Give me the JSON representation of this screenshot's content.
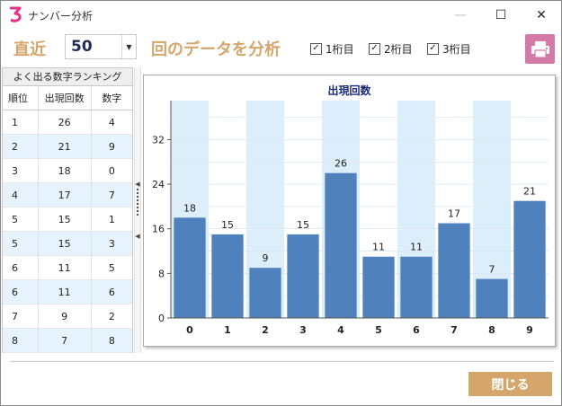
{
  "window": {
    "title": "ナンバー分析",
    "minimize_glyph": "—",
    "maximize_glyph": "☐",
    "close_glyph": "✕"
  },
  "toolbar": {
    "recent_label": "直近",
    "count_value": "50",
    "combo_arrow": "▼",
    "analyze_label": "回のデータを分析",
    "checkboxes": [
      {
        "label": "1桁目",
        "checked": true
      },
      {
        "label": "2桁目",
        "checked": true
      },
      {
        "label": "3桁目",
        "checked": true
      }
    ],
    "check_glyph": "✓",
    "print_icon": "printer-icon",
    "print_color": "#d37aa9"
  },
  "ranking": {
    "title": "よく出る数字ランキング",
    "headers": [
      "順位",
      "出現回数",
      "数字"
    ],
    "rows": [
      [
        "1",
        "26",
        "4"
      ],
      [
        "2",
        "21",
        "9"
      ],
      [
        "3",
        "18",
        "0"
      ],
      [
        "4",
        "17",
        "7"
      ],
      [
        "5",
        "15",
        "1"
      ],
      [
        "5",
        "15",
        "3"
      ],
      [
        "6",
        "11",
        "5"
      ],
      [
        "6",
        "11",
        "6"
      ],
      [
        "7",
        "9",
        "2"
      ],
      [
        "8",
        "7",
        "8"
      ]
    ]
  },
  "chart_data": {
    "type": "bar",
    "title": "出現回数",
    "categories": [
      "0",
      "1",
      "2",
      "3",
      "4",
      "5",
      "6",
      "7",
      "8",
      "9"
    ],
    "values": [
      18,
      15,
      9,
      15,
      26,
      11,
      11,
      17,
      7,
      21
    ],
    "yticks": [
      0,
      8,
      16,
      24,
      32
    ],
    "ylim": [
      0,
      39
    ],
    "bar_color": "#4f81bd",
    "band_color": "#ddeefb",
    "grid": true
  },
  "footer": {
    "close_label": "閉じる",
    "accent": "#d4a66b"
  }
}
